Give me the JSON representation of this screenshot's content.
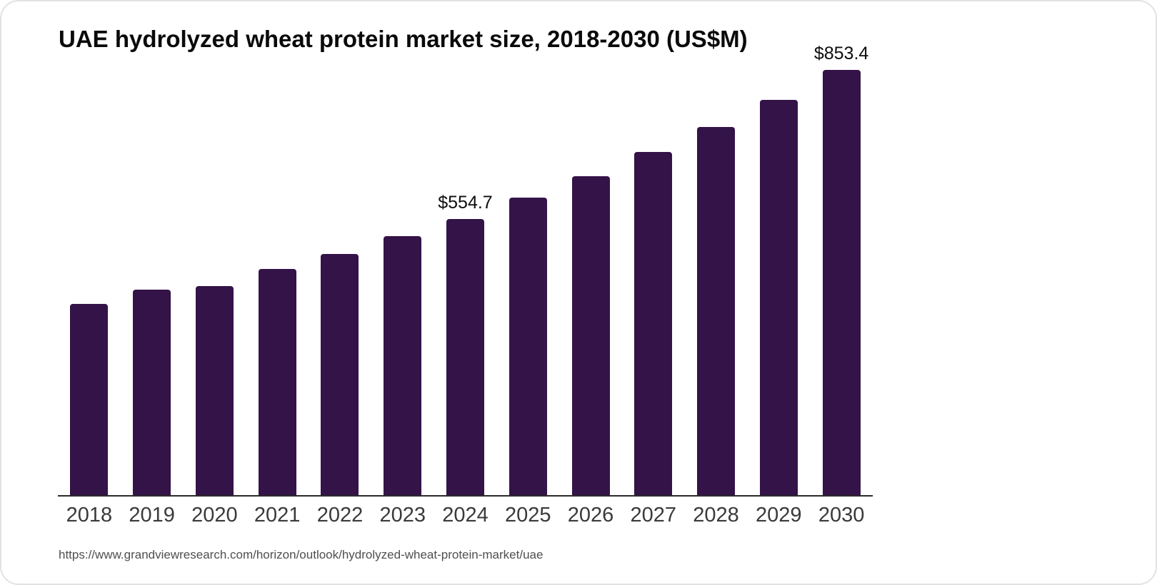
{
  "card": {
    "title": "UAE hydrolyzed wheat protein market size, 2018-2030 (US$M)",
    "source_url": "https://www.grandviewresearch.com/horizon/outlook/hydrolyzed-wheat-protein-market/uae"
  },
  "chart_data": {
    "type": "bar",
    "title": "UAE hydrolyzed wheat protein market size, 2018-2030 (US$M)",
    "categories": [
      "2018",
      "2019",
      "2020",
      "2021",
      "2022",
      "2023",
      "2024",
      "2025",
      "2026",
      "2027",
      "2028",
      "2029",
      "2030"
    ],
    "values": [
      384.1,
      412.5,
      419.6,
      453.8,
      483.6,
      519.2,
      554.7,
      597.4,
      640.1,
      688.5,
      738.2,
      793.7,
      853.4
    ],
    "data_labels": [
      null,
      null,
      null,
      null,
      null,
      null,
      "$554.7",
      null,
      null,
      null,
      null,
      null,
      "$853.4"
    ],
    "xlabel": "",
    "ylabel": "",
    "units": "US$M",
    "ylim": [
      0,
      853.4
    ],
    "grid": false,
    "legend": "none",
    "colors": {
      "bar": "#341348",
      "axis_line": "#2b2b2b",
      "tick_label": "#3a3a3a",
      "data_label": "#0d0d0d",
      "title": "#0a0a0a",
      "source": "#4f4f4f",
      "card_border": "#e2e2e2",
      "background": "#ffffff"
    }
  }
}
